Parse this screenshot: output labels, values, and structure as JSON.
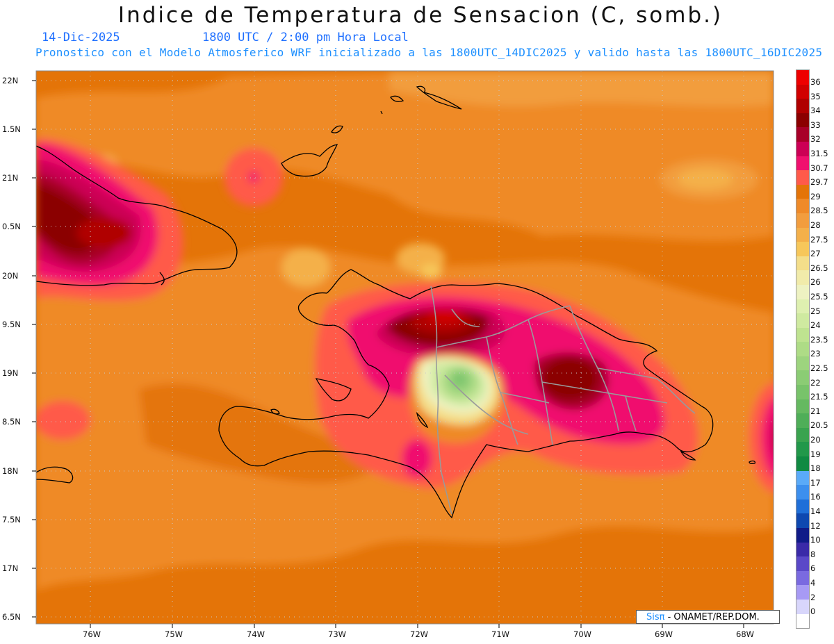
{
  "title": "Indice de Temperatura de Sensacion (C, somb.)",
  "date": "14-Dic-2025",
  "time": "1800 UTC / 2:00 pm Hora Local",
  "forecast": "Pronostico con el Modelo Atmosferico WRF inicializado a las 1800UTC_14DIC2025 y valido hasta las  1800UTC_16DIC2025",
  "credit": {
    "brand": "Sisπ",
    "text": " - ONAMET/REP.DOM."
  },
  "lat_labels": [
    "22N",
    "1.5N",
    "21N",
    "0.5N",
    "20N",
    "9.5N",
    "19N",
    "8.5N",
    "18N",
    "7.5N",
    "17N",
    "6.5N"
  ],
  "lon_labels": [
    "76W",
    "75W",
    "74W",
    "73W",
    "72W",
    "71W",
    "70W",
    "69W",
    "68W"
  ],
  "colorbar": [
    {
      "label": "36",
      "color": "#ee0000"
    },
    {
      "label": "35",
      "color": "#d10000"
    },
    {
      "label": "34",
      "color": "#b00000"
    },
    {
      "label": "33",
      "color": "#8b0000"
    },
    {
      "label": "32",
      "color": "#a80028"
    },
    {
      "label": "31.5",
      "color": "#cc0055"
    },
    {
      "label": "30.7",
      "color": "#f0106e"
    },
    {
      "label": "29.7",
      "color": "#ff5a4a"
    },
    {
      "label": "29",
      "color": "#e47408"
    },
    {
      "label": "28.5",
      "color": "#ef8a28"
    },
    {
      "label": "28",
      "color": "#f29d3e"
    },
    {
      "label": "27.5",
      "color": "#f4b04a"
    },
    {
      "label": "27",
      "color": "#f7c75a"
    },
    {
      "label": "26.5",
      "color": "#f4de8a"
    },
    {
      "label": "26",
      "color": "#f1ebaa"
    },
    {
      "label": "25.5",
      "color": "#eef2c2"
    },
    {
      "label": "25",
      "color": "#def0b0"
    },
    {
      "label": "24",
      "color": "#cfeaa0"
    },
    {
      "label": "23.5",
      "color": "#bfe390"
    },
    {
      "label": "23",
      "color": "#aedc86"
    },
    {
      "label": "22.5",
      "color": "#9dd47e"
    },
    {
      "label": "22",
      "color": "#8bcc74"
    },
    {
      "label": "21.5",
      "color": "#78c36a"
    },
    {
      "label": "21",
      "color": "#65b960"
    },
    {
      "label": "20.5",
      "color": "#4fae58"
    },
    {
      "label": "20",
      "color": "#3aa34f"
    },
    {
      "label": "19",
      "color": "#22984a"
    },
    {
      "label": "18",
      "color": "#108a42"
    },
    {
      "label": "17",
      "color": "#5aaaf8"
    },
    {
      "label": "16",
      "color": "#3c8fee"
    },
    {
      "label": "14",
      "color": "#1f6fd8"
    },
    {
      "label": "12",
      "color": "#0e48b0"
    },
    {
      "label": "10",
      "color": "#101b88"
    },
    {
      "label": "8",
      "color": "#3a2aa8"
    },
    {
      "label": "6",
      "color": "#5a48c8"
    },
    {
      "label": "4",
      "color": "#7a6ae0"
    },
    {
      "label": "2",
      "color": "#a79af4"
    },
    {
      "label": "0",
      "color": "#d8d6fb"
    },
    {
      "label": "",
      "color": "#ffffff"
    }
  ]
}
